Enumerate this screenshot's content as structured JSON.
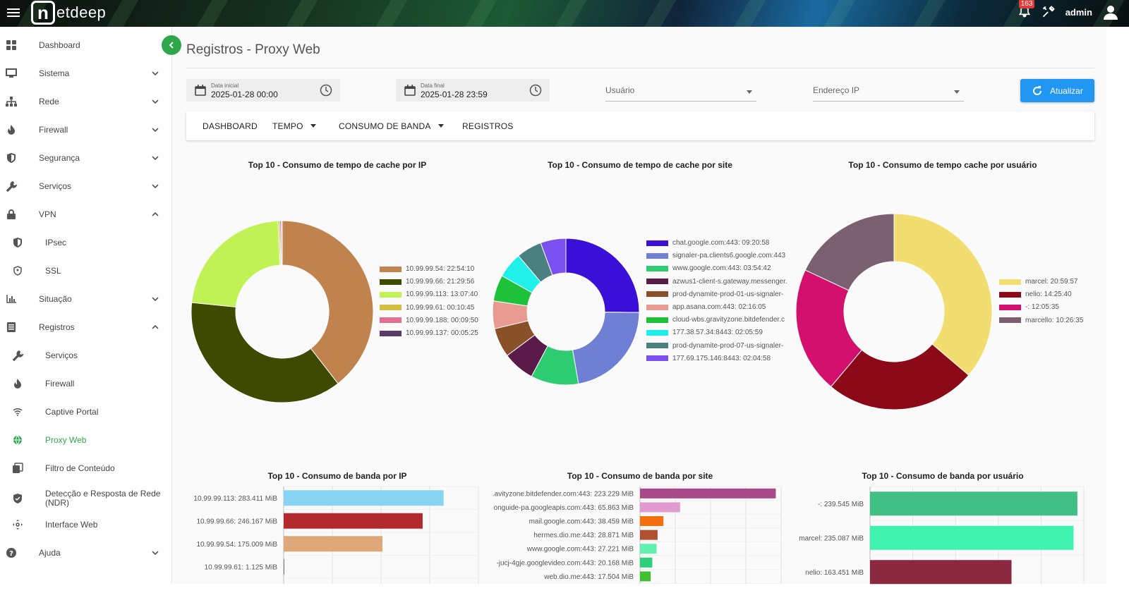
{
  "topbar": {
    "logo_letter": "n",
    "logo_text": "etdeep",
    "notifications": "163",
    "user": "admin"
  },
  "sidebar": {
    "items": [
      {
        "label": "Dashboard",
        "icon": "dashboard-icon"
      },
      {
        "label": "Sistema",
        "icon": "monitor-icon"
      },
      {
        "label": "Rede",
        "icon": "network-icon"
      },
      {
        "label": "Firewall",
        "icon": "flame-icon"
      },
      {
        "label": "Segurança",
        "icon": "shield-icon"
      },
      {
        "label": "Serviços",
        "icon": "wrench-icon"
      },
      {
        "label": "VPN",
        "icon": "lock-icon"
      },
      {
        "label": "IPsec",
        "icon": "shield-half-icon"
      },
      {
        "label": "SSL",
        "icon": "shield-outline-icon"
      },
      {
        "label": "Situação",
        "icon": "bar-chart-icon"
      },
      {
        "label": "Registros",
        "icon": "registry-icon"
      },
      {
        "label": "Serviços",
        "icon": "wrench-icon"
      },
      {
        "label": "Firewall",
        "icon": "flame-icon"
      },
      {
        "label": "Captive Portal",
        "icon": "wifi-icon"
      },
      {
        "label": "Proxy Web",
        "icon": "globe-icon"
      },
      {
        "label": "Filtro de Conteúdo",
        "icon": "content-filter-icon"
      },
      {
        "label": "Detecção e Resposta de Rede (NDR)",
        "icon": "shield-check-icon"
      },
      {
        "label": "Interface Web",
        "icon": "move-icon"
      },
      {
        "label": "Ajuda",
        "icon": "help-icon"
      }
    ]
  },
  "page": {
    "title": "Registros - Proxy Web"
  },
  "filters": {
    "start_caption": "Data inicial",
    "start_value": "2025-01-28 00:00",
    "end_caption": "Data final",
    "end_value": "2025-01-28 23:59",
    "user_placeholder": "Usuário",
    "ip_placeholder": "Endereço IP",
    "refresh_label": "Atualizar"
  },
  "tabs": [
    {
      "label": "DASHBOARD"
    },
    {
      "label": "TEMPO"
    },
    {
      "label": "CONSUMO DE BANDA"
    },
    {
      "label": "REGISTROS"
    }
  ],
  "chart_data": [
    {
      "type": "pie",
      "title": "Top 10 - Consumo de tempo de cache por IP",
      "labels": [
        "10.99.99.54: 22:54:10",
        "10.99.99.66: 21:29:56",
        "10.99.99.113: 13:07:40",
        "10.99.99.61: 00:10:45",
        "10.99.99.188: 00:09:50",
        "10.99.99.137: 00:05:25"
      ],
      "values": [
        82450,
        77396,
        47260,
        645,
        590,
        325
      ],
      "colors": [
        "#c0834e",
        "#3d4a00",
        "#c0f256",
        "#d4c040",
        "#e07090",
        "#5a3a6a"
      ],
      "legend": "right"
    },
    {
      "type": "pie",
      "title": "Top 10 - Consumo de tempo de cache por site",
      "labels": [
        "chat.google.com:443: 09:20:58",
        "signaler-pa.clients6.google.com:443",
        "www.google.com:443: 03:54:42",
        "azwus1-client-s.gateway.messenger.",
        "prod-dynamite-prod-01-us-signaler-",
        "app.asana.com:443: 02:16:05",
        "cloud-wbs.gravityzone.bitdefender.c",
        "177.38.57.34:8443: 02:05:59",
        "prod-dynamite-prod-07-us-signaler-",
        "177.69.175.146:8443: 02:04:58"
      ],
      "values": [
        9.35,
        8.2,
        3.91,
        2.6,
        2.4,
        2.27,
        2.15,
        2.1,
        2.08,
        2.08
      ],
      "colors": [
        "#3a0fd8",
        "#6f7fd4",
        "#2ecc71",
        "#5a1a4a",
        "#8a5028",
        "#e89a90",
        "#1ec23a",
        "#20f0ea",
        "#4a8080",
        "#7a50f0"
      ],
      "legend": "right"
    },
    {
      "type": "pie",
      "title": "Top 10 - Consumo de tempo cache por usuário",
      "labels": [
        "marcel: 20:59:57",
        "nelio: 14:25:40",
        "-: 12:05:35",
        "marcello: 10:26:35"
      ],
      "values": [
        75597,
        51940,
        43535,
        37595
      ],
      "colors": [
        "#f2de70",
        "#8c0a18",
        "#d4106e",
        "#7a6070"
      ],
      "legend": "right"
    },
    {
      "type": "bar",
      "orientation": "horizontal",
      "title": "Top 10 - Consumo de banda por IP",
      "categories": [
        "10.99.99.113: 283.411 MiB",
        "10.99.99.66: 246.167 MiB",
        "10.99.99.54: 175.009 MiB",
        "10.99.99.61: 1.125 MiB"
      ],
      "values": [
        283.411,
        246.167,
        175.009,
        1.125
      ],
      "colors": [
        "#87d4f2",
        "#b22a2e",
        "#e0a878",
        "#7a7a7a"
      ]
    },
    {
      "type": "bar",
      "orientation": "horizontal",
      "title": "Top 10 - Consumo de banda por site",
      "categories": [
        ".avityzone.bitdefender.com:443: 223.229 MiB",
        "onguide-pa.googleapis.com:443: 65.863 MiB",
        "mail.google.com:443: 38.459 MiB",
        "hermes.dio.me:443: 28.871 MiB",
        "www.google.com:443: 27.221 MiB",
        "-jucj-4gje.googlevideo.com:443: 20.168 MiB",
        "web.dio.me:443: 17.504 MiB"
      ],
      "values": [
        223.229,
        65.863,
        38.459,
        28.871,
        27.221,
        20.168,
        17.504
      ],
      "colors": [
        "#a84a8a",
        "#e09ad0",
        "#f27010",
        "#b05030",
        "#60f0b0",
        "#2cd07a",
        "#40c030"
      ]
    },
    {
      "type": "bar",
      "orientation": "horizontal",
      "title": "Top 10 - Consumo de banda por usuário",
      "categories": [
        "-: 239.545 MiB",
        "marcel: 235.087 MiB",
        "nelio: 163.451 MiB"
      ],
      "values": [
        239.545,
        235.087,
        163.451
      ],
      "colors": [
        "#40c084",
        "#40f2b0",
        "#8a2840"
      ]
    }
  ]
}
